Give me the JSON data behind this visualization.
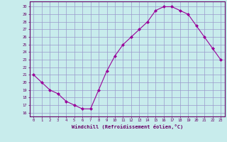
{
  "x": [
    0,
    1,
    2,
    3,
    4,
    5,
    6,
    7,
    8,
    9,
    10,
    11,
    12,
    13,
    14,
    15,
    16,
    17,
    18,
    19,
    20,
    21,
    22,
    23
  ],
  "y": [
    21,
    20,
    19,
    18.5,
    17.5,
    17,
    16.5,
    16.5,
    19,
    21.5,
    23.5,
    25,
    26,
    27,
    28,
    29.5,
    30,
    30,
    29.5,
    29,
    27.5,
    26,
    24.5,
    23
  ],
  "line_color": "#990099",
  "marker": "D",
  "marker_size": 2,
  "bg_color": "#c8ecec",
  "grid_color": "#9999cc",
  "xlabel": "Windchill (Refroidissement éolien,°C)",
  "ytick_labels": [
    "16",
    "17",
    "18",
    "19",
    "20",
    "21",
    "22",
    "23",
    "24",
    "25",
    "26",
    "27",
    "28",
    "29",
    "30"
  ],
  "ytick_values": [
    16,
    17,
    18,
    19,
    20,
    21,
    22,
    23,
    24,
    25,
    26,
    27,
    28,
    29,
    30
  ],
  "xtick_labels": [
    "0",
    "1",
    "2",
    "3",
    "4",
    "5",
    "6",
    "7",
    "8",
    "9",
    "10",
    "11",
    "12",
    "13",
    "14",
    "15",
    "16",
    "17",
    "18",
    "19",
    "20",
    "21",
    "22",
    "23"
  ],
  "xlim": [
    -0.5,
    23.5
  ],
  "ylim": [
    15.5,
    30.7
  ],
  "tick_color": "#660066",
  "spine_color": "#660066",
  "axis_label_color": "#660066",
  "tick_label_color": "#660066"
}
